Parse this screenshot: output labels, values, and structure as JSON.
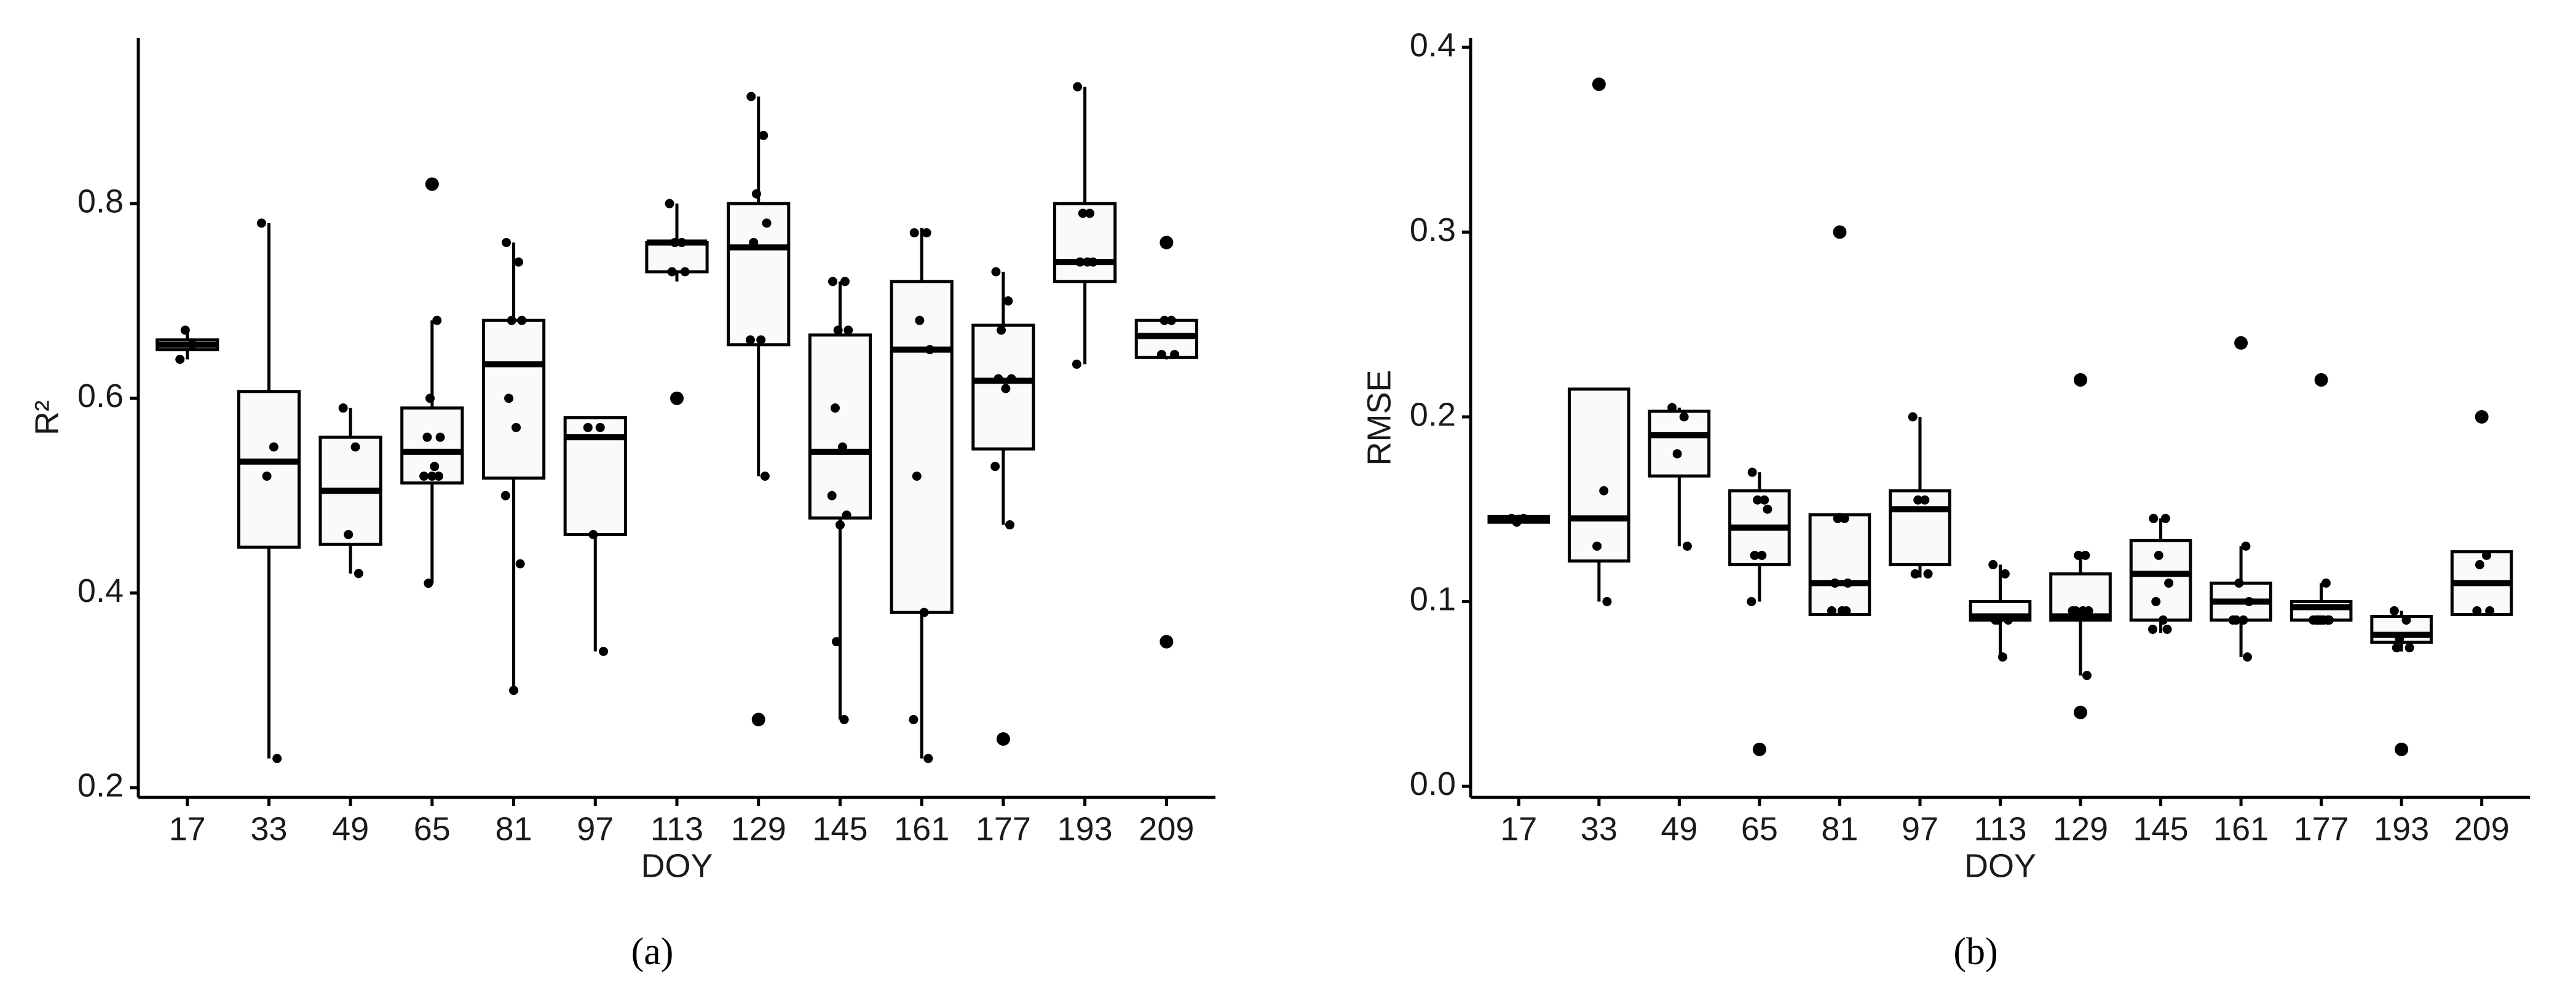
{
  "chart_data": [
    {
      "type": "box",
      "panel_label": "(a)",
      "x_label": "DOY",
      "y_label": "R²",
      "categories": [
        "17",
        "33",
        "49",
        "65",
        "81",
        "97",
        "113",
        "129",
        "145",
        "161",
        "177",
        "193",
        "209"
      ],
      "ylim": [
        0.19,
        0.97
      ],
      "yticks": [
        0.2,
        0.4,
        0.6,
        0.8
      ],
      "color": "#000000",
      "box_fill": "#fafafa",
      "boxes": [
        {
          "whisker_low": 0.64,
          "q1": 0.65,
          "median": 0.655,
          "q3": 0.66,
          "whisker_high": 0.67
        },
        {
          "whisker_low": 0.23,
          "q1": 0.447,
          "median": 0.535,
          "q3": 0.607,
          "whisker_high": 0.78
        },
        {
          "whisker_low": 0.42,
          "q1": 0.45,
          "median": 0.505,
          "q3": 0.56,
          "whisker_high": 0.59
        },
        {
          "whisker_low": 0.41,
          "q1": 0.513,
          "median": 0.545,
          "q3": 0.59,
          "whisker_high": 0.68
        },
        {
          "whisker_low": 0.3,
          "q1": 0.518,
          "median": 0.635,
          "q3": 0.68,
          "whisker_high": 0.76
        },
        {
          "whisker_low": 0.34,
          "q1": 0.46,
          "median": 0.56,
          "q3": 0.58,
          "whisker_high": 0.58
        },
        {
          "whisker_low": 0.72,
          "q1": 0.73,
          "median": 0.76,
          "q3": 0.76,
          "whisker_high": 0.8
        },
        {
          "whisker_low": 0.52,
          "q1": 0.655,
          "median": 0.755,
          "q3": 0.8,
          "whisker_high": 0.91
        },
        {
          "whisker_low": 0.27,
          "q1": 0.477,
          "median": 0.545,
          "q3": 0.665,
          "whisker_high": 0.72
        },
        {
          "whisker_low": 0.23,
          "q1": 0.38,
          "median": 0.65,
          "q3": 0.72,
          "whisker_high": 0.775
        },
        {
          "whisker_low": 0.47,
          "q1": 0.548,
          "median": 0.618,
          "q3": 0.675,
          "whisker_high": 0.73
        },
        {
          "whisker_low": 0.635,
          "q1": 0.72,
          "median": 0.74,
          "q3": 0.8,
          "whisker_high": 0.92
        },
        {
          "whisker_low": 0.64,
          "q1": 0.642,
          "median": 0.664,
          "q3": 0.68,
          "whisker_high": 0.68
        }
      ],
      "points": [
        [
          0.64,
          0.655,
          0.67
        ],
        [
          0.78,
          0.55,
          0.52,
          0.23
        ],
        [
          0.59,
          0.55,
          0.46,
          0.42
        ],
        [
          0.82,
          0.68,
          0.6,
          0.56,
          0.56,
          0.53,
          0.52,
          0.52,
          0.52,
          0.41
        ],
        [
          0.76,
          0.74,
          0.68,
          0.68,
          0.6,
          0.57,
          0.5,
          0.43,
          0.3
        ],
        [
          0.57,
          0.57,
          0.46,
          0.34
        ],
        [
          0.8,
          0.76,
          0.76,
          0.73,
          0.73,
          0.6
        ],
        [
          0.91,
          0.87,
          0.81,
          0.78,
          0.76,
          0.66,
          0.66,
          0.52,
          0.27
        ],
        [
          0.72,
          0.72,
          0.67,
          0.67,
          0.59,
          0.55,
          0.5,
          0.48,
          0.47,
          0.35,
          0.27
        ],
        [
          0.77,
          0.77,
          0.68,
          0.65,
          0.52,
          0.38,
          0.27,
          0.23
        ],
        [
          0.73,
          0.7,
          0.67,
          0.62,
          0.62,
          0.61,
          0.53,
          0.47,
          0.25
        ],
        [
          0.92,
          0.79,
          0.79,
          0.74,
          0.74,
          0.74,
          0.635
        ],
        [
          0.76,
          0.68,
          0.68,
          0.645,
          0.645,
          0.35
        ]
      ]
    },
    {
      "type": "box",
      "panel_label": "(b)",
      "x_label": "DOY",
      "y_label": "RMSE",
      "categories": [
        "17",
        "33",
        "49",
        "65",
        "81",
        "97",
        "113",
        "129",
        "145",
        "161",
        "177",
        "193",
        "209"
      ],
      "ylim": [
        -0.006,
        0.405
      ],
      "yticks": [
        {
          "value": 0,
          "label": "0.0"
        },
        0.1,
        0.2,
        0.3,
        0.4
      ],
      "color": "#000000",
      "box_fill": "#fafafa",
      "boxes": [
        {
          "whisker_low": 0.142,
          "q1": 0.143,
          "median": 0.145,
          "q3": 0.146,
          "whisker_high": 0.147
        },
        {
          "whisker_low": 0.1,
          "q1": 0.122,
          "median": 0.145,
          "q3": 0.215,
          "whisker_high": 0.215
        },
        {
          "whisker_low": 0.13,
          "q1": 0.168,
          "median": 0.19,
          "q3": 0.203,
          "whisker_high": 0.205
        },
        {
          "whisker_low": 0.1,
          "q1": 0.12,
          "median": 0.14,
          "q3": 0.16,
          "whisker_high": 0.17
        },
        {
          "whisker_low": 0.093,
          "q1": 0.093,
          "median": 0.11,
          "q3": 0.147,
          "whisker_high": 0.148
        },
        {
          "whisker_low": 0.113,
          "q1": 0.12,
          "median": 0.15,
          "q3": 0.16,
          "whisker_high": 0.2
        },
        {
          "whisker_low": 0.07,
          "q1": 0.09,
          "median": 0.092,
          "q3": 0.1,
          "whisker_high": 0.12
        },
        {
          "whisker_low": 0.06,
          "q1": 0.09,
          "median": 0.092,
          "q3": 0.115,
          "whisker_high": 0.125
        },
        {
          "whisker_low": 0.083,
          "q1": 0.09,
          "median": 0.115,
          "q3": 0.133,
          "whisker_high": 0.145
        },
        {
          "whisker_low": 0.07,
          "q1": 0.09,
          "median": 0.1,
          "q3": 0.11,
          "whisker_high": 0.13
        },
        {
          "whisker_low": 0.09,
          "q1": 0.09,
          "median": 0.097,
          "q3": 0.1,
          "whisker_high": 0.11
        },
        {
          "whisker_low": 0.073,
          "q1": 0.078,
          "median": 0.082,
          "q3": 0.092,
          "whisker_high": 0.095
        },
        {
          "whisker_low": 0.093,
          "q1": 0.093,
          "median": 0.11,
          "q3": 0.127,
          "whisker_high": 0.127
        }
      ],
      "points": [
        [
          0.145,
          0.145,
          0.143
        ],
        [
          0.38,
          0.16,
          0.13,
          0.1
        ],
        [
          0.205,
          0.2,
          0.18,
          0.13
        ],
        [
          0.17,
          0.155,
          0.155,
          0.15,
          0.125,
          0.125,
          0.1,
          0.02
        ],
        [
          0.3,
          0.145,
          0.145,
          0.11,
          0.11,
          0.095,
          0.095,
          0.095
        ],
        [
          0.2,
          0.155,
          0.155,
          0.115,
          0.115
        ],
        [
          0.12,
          0.115,
          0.09,
          0.09,
          0.09,
          0.07
        ],
        [
          0.22,
          0.125,
          0.125,
          0.095,
          0.095,
          0.095,
          0.095,
          0.06,
          0.04
        ],
        [
          0.145,
          0.145,
          0.125,
          0.11,
          0.1,
          0.09,
          0.085,
          0.085
        ],
        [
          0.24,
          0.13,
          0.11,
          0.1,
          0.09,
          0.09,
          0.09,
          0.07
        ],
        [
          0.22,
          0.11,
          0.09,
          0.09,
          0.09,
          0.09,
          0.09,
          0.09,
          0.09,
          0.09
        ],
        [
          0.095,
          0.09,
          0.08,
          0.075,
          0.075,
          0.02
        ],
        [
          0.2,
          0.125,
          0.12,
          0.095,
          0.095
        ]
      ]
    }
  ]
}
